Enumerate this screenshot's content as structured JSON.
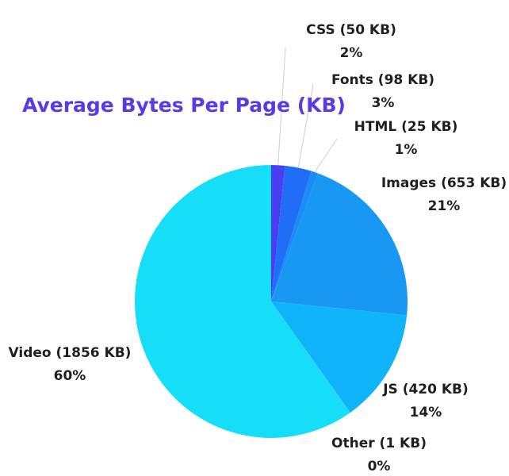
{
  "chart_data": {
    "type": "pie",
    "title": "Average Bytes Per Page (KB)",
    "slices": [
      {
        "label": "CSS (50 KB)",
        "value": 50,
        "percent_label": "2%",
        "color": "#4a3ff0"
      },
      {
        "label": "Fonts (98 KB)",
        "value": 98,
        "percent_label": "3%",
        "color": "#1f6ef5"
      },
      {
        "label": "HTML (25 KB)",
        "value": 25,
        "percent_label": "1%",
        "color": "#1a8cf6"
      },
      {
        "label": "Images (653 KB)",
        "value": 653,
        "percent_label": "21%",
        "color": "#1898f3"
      },
      {
        "label": "JS (420 KB)",
        "value": 420,
        "percent_label": "14%",
        "color": "#0fb4fb"
      },
      {
        "label": "Other (1 KB)",
        "value": 1,
        "percent_label": "0%",
        "color": "#12cdf8"
      },
      {
        "label": "Video (1856 KB)",
        "value": 1856,
        "percent_label": "60%",
        "color": "#16def9"
      }
    ]
  },
  "colors": {
    "title": "#5a3ae6",
    "text": "#1f1f1f",
    "leader_line": "#cfcfcf"
  }
}
